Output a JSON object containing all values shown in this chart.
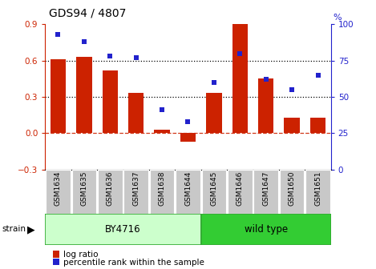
{
  "title": "GDS94 / 4807",
  "categories": [
    "GSM1634",
    "GSM1635",
    "GSM1636",
    "GSM1637",
    "GSM1638",
    "GSM1644",
    "GSM1645",
    "GSM1646",
    "GSM1647",
    "GSM1650",
    "GSM1651"
  ],
  "log_ratio": [
    0.61,
    0.63,
    0.52,
    0.33,
    0.03,
    -0.07,
    0.33,
    0.9,
    0.45,
    0.13,
    0.13
  ],
  "percentile_rank": [
    93,
    88,
    78,
    77,
    41,
    33,
    60,
    80,
    62,
    55,
    65
  ],
  "bar_color": "#cc2200",
  "dot_color": "#2222cc",
  "ylim_left": [
    -0.3,
    0.9
  ],
  "ylim_right": [
    0,
    100
  ],
  "yticks_left": [
    -0.3,
    0.0,
    0.3,
    0.6,
    0.9
  ],
  "yticks_right": [
    0,
    25,
    50,
    75,
    100
  ],
  "hline_dotted": [
    0.3,
    0.6
  ],
  "hline_dashed": 0.0,
  "group1_label": "BY4716",
  "group1_count": 6,
  "group2_label": "wild type",
  "group2_count": 5,
  "group1_color": "#ccffcc",
  "group2_color": "#33cc33",
  "group_border_color": "#33aa33",
  "strain_label": "strain",
  "legend_bar": "log ratio",
  "legend_dot": "percentile rank within the sample",
  "tick_color_left": "#cc2200",
  "tick_color_right": "#2222cc",
  "bar_width": 0.6,
  "xlabel_bg": "#c8c8c8",
  "xlabel_border": "#ffffff"
}
